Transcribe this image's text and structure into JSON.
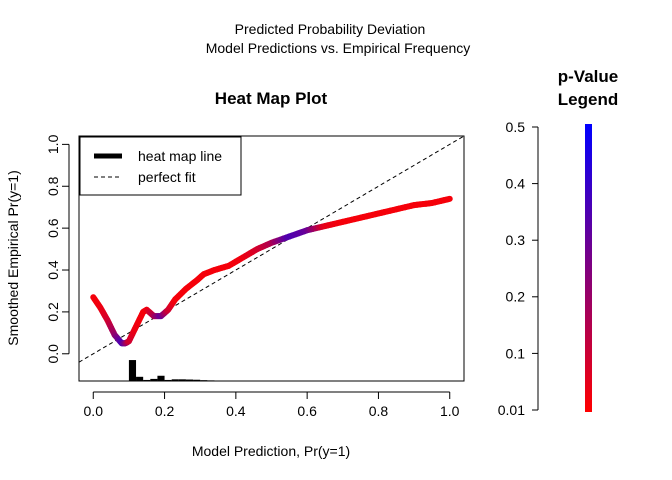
{
  "figure": {
    "suptitle_line1": "Predicted Probability Deviation",
    "suptitle_line2": "Model Predictions vs. Empirical Frequency"
  },
  "chart_data": [
    {
      "type": "line",
      "title": "Heat Map Plot",
      "xlabel": "Model Prediction, Pr(y=1)",
      "ylabel": "Smoothed Empirical Pr(y=1)",
      "xlim": [
        -0.04,
        1.04
      ],
      "ylim": [
        -0.13,
        1.04
      ],
      "x_ticks": [
        0.0,
        0.2,
        0.4,
        0.6,
        0.8,
        1.0
      ],
      "x_tick_labels": [
        "0.0",
        "0.2",
        "0.4",
        "0.6",
        "0.8",
        "1.0"
      ],
      "y_ticks": [
        0.0,
        0.2,
        0.4,
        0.6,
        0.8,
        1.0
      ],
      "y_tick_labels": [
        "0.0",
        "0.2",
        "0.4",
        "0.6",
        "0.8",
        "1.0"
      ],
      "grid": false,
      "legend_position": "top-left",
      "legend": {
        "heat_map_line": "heat map line",
        "perfect_fit": "perfect fit"
      },
      "colors": {
        "low_p": "#ff0000",
        "high_p": "#0000ff",
        "ink": "#000000"
      },
      "series": [
        {
          "name": "heat map line",
          "style": "thick gradient line colored by p-value",
          "points": [
            {
              "x": 0.0,
              "y": 0.27,
              "p": 0.02
            },
            {
              "x": 0.02,
              "y": 0.22,
              "p": 0.03
            },
            {
              "x": 0.04,
              "y": 0.16,
              "p": 0.08
            },
            {
              "x": 0.06,
              "y": 0.09,
              "p": 0.2
            },
            {
              "x": 0.08,
              "y": 0.05,
              "p": 0.35
            },
            {
              "x": 0.09,
              "y": 0.05,
              "p": 0.25
            },
            {
              "x": 0.1,
              "y": 0.06,
              "p": 0.1
            },
            {
              "x": 0.12,
              "y": 0.13,
              "p": 0.03
            },
            {
              "x": 0.14,
              "y": 0.2,
              "p": 0.02
            },
            {
              "x": 0.15,
              "y": 0.21,
              "p": 0.02
            },
            {
              "x": 0.17,
              "y": 0.18,
              "p": 0.15
            },
            {
              "x": 0.19,
              "y": 0.18,
              "p": 0.3
            },
            {
              "x": 0.21,
              "y": 0.21,
              "p": 0.1
            },
            {
              "x": 0.23,
              "y": 0.26,
              "p": 0.02
            },
            {
              "x": 0.26,
              "y": 0.31,
              "p": 0.02
            },
            {
              "x": 0.29,
              "y": 0.35,
              "p": 0.02
            },
            {
              "x": 0.31,
              "y": 0.38,
              "p": 0.02
            },
            {
              "x": 0.34,
              "y": 0.4,
              "p": 0.02
            },
            {
              "x": 0.38,
              "y": 0.42,
              "p": 0.02
            },
            {
              "x": 0.42,
              "y": 0.46,
              "p": 0.03
            },
            {
              "x": 0.46,
              "y": 0.5,
              "p": 0.08
            },
            {
              "x": 0.5,
              "y": 0.53,
              "p": 0.15
            },
            {
              "x": 0.55,
              "y": 0.56,
              "p": 0.35
            },
            {
              "x": 0.6,
              "y": 0.59,
              "p": 0.3
            },
            {
              "x": 0.65,
              "y": 0.61,
              "p": 0.05
            },
            {
              "x": 0.7,
              "y": 0.63,
              "p": 0.02
            },
            {
              "x": 0.75,
              "y": 0.65,
              "p": 0.02
            },
            {
              "x": 0.8,
              "y": 0.67,
              "p": 0.02
            },
            {
              "x": 0.85,
              "y": 0.69,
              "p": 0.02
            },
            {
              "x": 0.9,
              "y": 0.71,
              "p": 0.02
            },
            {
              "x": 0.95,
              "y": 0.72,
              "p": 0.02
            },
            {
              "x": 1.0,
              "y": 0.74,
              "p": 0.02
            }
          ]
        },
        {
          "name": "perfect fit",
          "style": "dashed",
          "points": [
            {
              "x": -0.04,
              "y": -0.04
            },
            {
              "x": 1.04,
              "y": 1.04
            }
          ]
        }
      ],
      "histogram": {
        "description": "distribution of model predictions",
        "bins": [
          {
            "x0": 0.1,
            "x1": 0.12,
            "height": 0.1
          },
          {
            "x0": 0.12,
            "x1": 0.14,
            "height": 0.02
          },
          {
            "x0": 0.14,
            "x1": 0.16,
            "height": 0.005
          },
          {
            "x0": 0.16,
            "x1": 0.18,
            "height": 0.01
          },
          {
            "x0": 0.18,
            "x1": 0.2,
            "height": 0.025
          },
          {
            "x0": 0.2,
            "x1": 0.22,
            "height": 0.005
          },
          {
            "x0": 0.22,
            "x1": 0.24,
            "height": 0.008
          },
          {
            "x0": 0.24,
            "x1": 0.26,
            "height": 0.008
          },
          {
            "x0": 0.26,
            "x1": 0.28,
            "height": 0.007
          },
          {
            "x0": 0.28,
            "x1": 0.3,
            "height": 0.006
          },
          {
            "x0": 0.3,
            "x1": 0.32,
            "height": 0.004
          },
          {
            "x0": 0.32,
            "x1": 0.34,
            "height": 0.003
          }
        ]
      }
    },
    {
      "type": "colorbar",
      "title_line1": "p-Value",
      "title_line2": "Legend",
      "ylim": [
        0.0,
        0.5
      ],
      "tick_values": [
        0.01,
        0.1,
        0.2,
        0.3,
        0.4,
        0.5
      ],
      "tick_labels": [
        "0.01",
        "0.1",
        "0.2",
        "0.3",
        "0.4",
        "0.5"
      ],
      "color_low": "#ff0000",
      "color_high": "#0000ff"
    }
  ]
}
